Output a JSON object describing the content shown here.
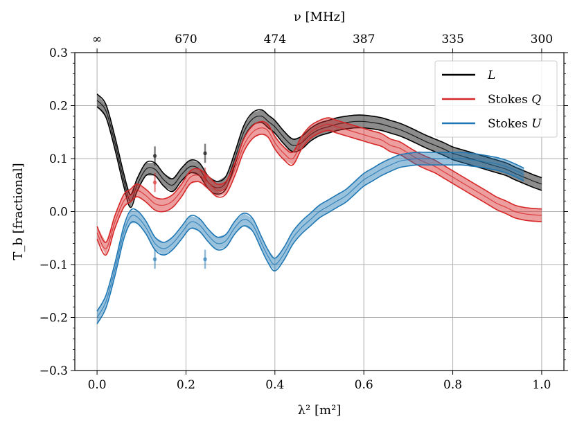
{
  "chart_data": {
    "type": "line",
    "title": "",
    "xlabel": "λ² [m²]",
    "ylabel": "T_b [fractional]",
    "top_xlabel": "ν [MHz]",
    "xlim": [
      -0.05,
      1.05
    ],
    "ylim": [
      -0.3,
      0.3
    ],
    "grid": true,
    "legend_position": "top-right",
    "x_ticks": [
      {
        "value": 0.0,
        "label": "0.0"
      },
      {
        "value": 0.2,
        "label": "0.2"
      },
      {
        "value": 0.4,
        "label": "0.4"
      },
      {
        "value": 0.6,
        "label": "0.6"
      },
      {
        "value": 0.8,
        "label": "0.8"
      },
      {
        "value": 1.0,
        "label": "1.0"
      }
    ],
    "y_ticks": [
      {
        "value": -0.3,
        "label": "−0.3"
      },
      {
        "value": -0.2,
        "label": "−0.2"
      },
      {
        "value": -0.1,
        "label": "−0.1"
      },
      {
        "value": 0.0,
        "label": "0.0"
      },
      {
        "value": 0.1,
        "label": "0.1"
      },
      {
        "value": 0.2,
        "label": "0.2"
      },
      {
        "value": 0.3,
        "label": "0.3"
      }
    ],
    "top_ticks": [
      {
        "value": 0.0,
        "label": "∞"
      },
      {
        "value": 0.2,
        "label": "670"
      },
      {
        "value": 0.4,
        "label": "474"
      },
      {
        "value": 0.6,
        "label": "387"
      },
      {
        "value": 0.8,
        "label": "335"
      },
      {
        "value": 1.0,
        "label": "300"
      }
    ],
    "series": [
      {
        "name": "L",
        "legend_main": "L",
        "legend_italic": true,
        "color": "#000000",
        "x": [
          0.0,
          0.02,
          0.04,
          0.06,
          0.075,
          0.09,
          0.11,
          0.13,
          0.15,
          0.17,
          0.19,
          0.21,
          0.23,
          0.25,
          0.27,
          0.29,
          0.31,
          0.33,
          0.35,
          0.37,
          0.385,
          0.4,
          0.42,
          0.44,
          0.46,
          0.48,
          0.5,
          0.52,
          0.54,
          0.56,
          0.58,
          0.6,
          0.62,
          0.64,
          0.66,
          0.68,
          0.7,
          0.72,
          0.74,
          0.76,
          0.78,
          0.8,
          0.82,
          0.84,
          0.86,
          0.88,
          0.9,
          0.92,
          0.94,
          0.96,
          0.98,
          1.0
        ],
        "y": [
          0.21,
          0.19,
          0.13,
          0.06,
          0.02,
          0.05,
          0.08,
          0.08,
          0.06,
          0.05,
          0.07,
          0.085,
          0.08,
          0.055,
          0.045,
          0.055,
          0.1,
          0.15,
          0.175,
          0.18,
          0.17,
          0.16,
          0.14,
          0.125,
          0.13,
          0.145,
          0.155,
          0.16,
          0.165,
          0.168,
          0.17,
          0.17,
          0.168,
          0.165,
          0.16,
          0.155,
          0.148,
          0.14,
          0.132,
          0.125,
          0.118,
          0.11,
          0.105,
          0.1,
          0.095,
          0.09,
          0.085,
          0.08,
          0.072,
          0.065,
          0.058,
          0.052
        ],
        "band": 0.012
      },
      {
        "name": "Stokes Q",
        "legend_main": "Stokes ",
        "legend_italic_suffix": "Q",
        "color": "#d62728",
        "x": [
          0.0,
          0.02,
          0.04,
          0.06,
          0.075,
          0.09,
          0.11,
          0.13,
          0.15,
          0.17,
          0.19,
          0.21,
          0.23,
          0.25,
          0.27,
          0.29,
          0.31,
          0.33,
          0.35,
          0.37,
          0.385,
          0.4,
          0.42,
          0.44,
          0.46,
          0.48,
          0.5,
          0.52,
          0.54,
          0.56,
          0.58,
          0.6,
          0.62,
          0.64,
          0.66,
          0.68,
          0.7,
          0.72,
          0.74,
          0.76,
          0.78,
          0.8,
          0.82,
          0.84,
          0.86,
          0.88,
          0.9,
          0.92,
          0.94,
          0.96,
          0.98,
          1.0
        ],
        "y": [
          -0.04,
          -0.07,
          -0.02,
          0.02,
          0.03,
          0.04,
          0.03,
          0.015,
          0.012,
          0.02,
          0.04,
          0.065,
          0.068,
          0.055,
          0.04,
          0.045,
          0.08,
          0.125,
          0.15,
          0.158,
          0.152,
          0.13,
          0.11,
          0.1,
          0.13,
          0.15,
          0.16,
          0.165,
          0.16,
          0.155,
          0.15,
          0.145,
          0.14,
          0.135,
          0.125,
          0.12,
          0.11,
          0.1,
          0.092,
          0.085,
          0.075,
          0.065,
          0.055,
          0.045,
          0.035,
          0.025,
          0.015,
          0.008,
          0.0,
          -0.004,
          -0.006,
          -0.007
        ],
        "band": 0.012
      },
      {
        "name": "Stokes U",
        "legend_main": "Stokes ",
        "legend_italic_suffix": "U",
        "color": "#1f77b4",
        "x": [
          0.0,
          0.02,
          0.04,
          0.06,
          0.075,
          0.09,
          0.11,
          0.13,
          0.15,
          0.17,
          0.19,
          0.21,
          0.23,
          0.25,
          0.27,
          0.29,
          0.31,
          0.33,
          0.35,
          0.37,
          0.385,
          0.4,
          0.42,
          0.44,
          0.46,
          0.48,
          0.5,
          0.52,
          0.54,
          0.56,
          0.58,
          0.6,
          0.62,
          0.64,
          0.66,
          0.68,
          0.7,
          0.72,
          0.74,
          0.76,
          0.78,
          0.8,
          0.82,
          0.84,
          0.86,
          0.88,
          0.9,
          0.92,
          0.94,
          0.96
        ],
        "y": [
          -0.2,
          -0.17,
          -0.11,
          -0.04,
          -0.01,
          -0.01,
          -0.03,
          -0.06,
          -0.07,
          -0.06,
          -0.04,
          -0.02,
          -0.025,
          -0.045,
          -0.06,
          -0.055,
          -0.03,
          -0.015,
          -0.025,
          -0.06,
          -0.085,
          -0.1,
          -0.08,
          -0.05,
          -0.03,
          -0.015,
          0.0,
          0.01,
          0.02,
          0.03,
          0.045,
          0.06,
          0.07,
          0.08,
          0.088,
          0.095,
          0.098,
          0.1,
          0.1,
          0.1,
          0.1,
          0.1,
          0.1,
          0.098,
          0.096,
          0.093,
          0.09,
          0.085,
          0.078,
          0.07
        ],
        "band": 0.012
      }
    ],
    "outlier_points": [
      {
        "series": "L",
        "x": 0.13,
        "y": 0.105,
        "err": 0.018
      },
      {
        "series": "L",
        "x": 0.243,
        "y": 0.11,
        "err": 0.018
      },
      {
        "series": "Stokes Q",
        "x": 0.13,
        "y": 0.055,
        "err": 0.018
      },
      {
        "series": "Stokes Q",
        "x": 0.243,
        "y": 0.065,
        "err": 0.018
      },
      {
        "series": "Stokes U",
        "x": 0.13,
        "y": -0.09,
        "err": 0.018
      },
      {
        "series": "Stokes U",
        "x": 0.243,
        "y": -0.09,
        "err": 0.018
      }
    ]
  }
}
